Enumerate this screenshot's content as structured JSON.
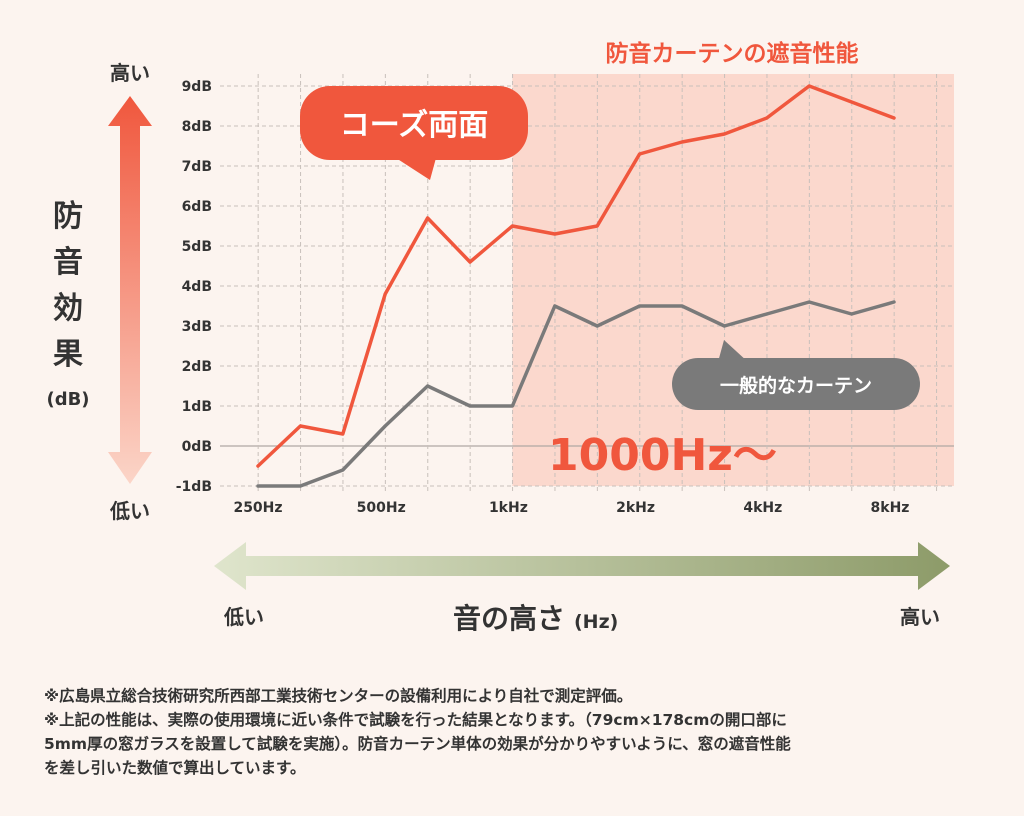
{
  "chart_data": {
    "type": "line",
    "title": "",
    "region_label": "防音カーテンの遮音性能",
    "region_start": "1kHz",
    "region_note": "1000Hz〜",
    "ylabel": "防音効果",
    "ylabel_unit": "(dB)",
    "y_high_label": "高い",
    "y_low_label": "低い",
    "xlabel": "音の高さ",
    "xlabel_unit": "(Hz)",
    "x_low_label": "低い",
    "x_high_label": "高い",
    "ylim": [
      -1,
      9
    ],
    "yticks": [
      "-1dB",
      "0dB",
      "1dB",
      "2dB",
      "3dB",
      "4dB",
      "5dB",
      "6dB",
      "7dB",
      "8dB",
      "9dB"
    ],
    "xticks": [
      "250Hz",
      "500Hz",
      "1kHz",
      "2kHz",
      "4kHz",
      "8kHz"
    ],
    "x": [
      "250Hz",
      "315Hz",
      "400Hz",
      "500Hz",
      "630Hz",
      "800Hz",
      "1kHz",
      "1.25kHz",
      "1.6kHz",
      "2kHz",
      "2.5kHz",
      "3.15kHz",
      "4kHz",
      "5kHz",
      "6.3kHz",
      "8kHz"
    ],
    "series": [
      {
        "name": "コーズ両面",
        "color": "#f0573d",
        "values": [
          -0.5,
          0.5,
          0.3,
          3.8,
          5.7,
          4.6,
          5.5,
          5.3,
          5.5,
          7.3,
          7.6,
          7.8,
          8.2,
          9.0,
          8.6,
          8.2
        ]
      },
      {
        "name": "一般的なカーテン",
        "color": "#7a7a7a",
        "values": [
          -1.0,
          -1.0,
          -0.6,
          0.5,
          1.5,
          1.0,
          1.0,
          3.5,
          3.0,
          3.5,
          3.5,
          3.0,
          3.3,
          3.6,
          3.3,
          3.6
        ]
      }
    ],
    "grid": true
  },
  "footnotes": [
    "※広島県立総合技術研究所西部工業技術センターの設備利用により自社で測定評価。",
    "※上記の性能は、実際の使用環境に近い条件で試験を行った結果となります。（79cm×178cmの開口部に",
    "5mm厚の窓ガラスを設置して試験を実施）。防音カーテン単体の効果が分かりやすいように、窓の遮音性能",
    "を差し引いた数値で算出しています。"
  ],
  "colors": {
    "accent": "#f0573d",
    "gray": "#7a7a7a",
    "region": "#fbd8cd",
    "arrow_green": "#8d9b69"
  }
}
